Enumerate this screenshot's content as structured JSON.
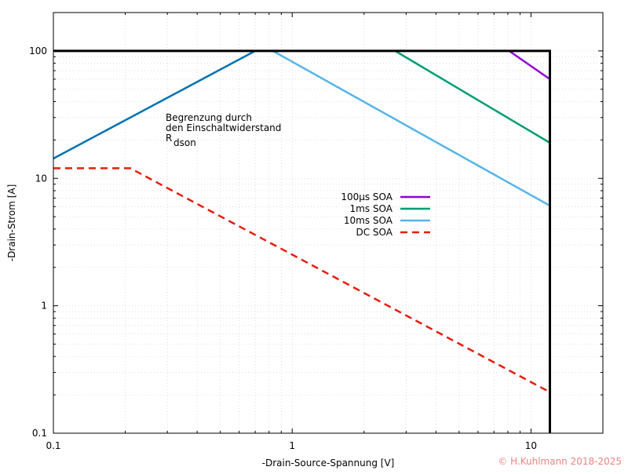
{
  "chart_data": {
    "type": "line",
    "title": "",
    "xlabel": "-Drain-Source-Spannung [V]",
    "ylabel": "-Drain-Strom [A]",
    "xscale": "log",
    "yscale": "log",
    "xlim": [
      0.1,
      20
    ],
    "ylim": [
      0.1,
      200
    ],
    "grid": true,
    "legend_position": "center",
    "x_ticks": [
      {
        "value": 0.1,
        "label": "0.1"
      },
      {
        "value": 1,
        "label": "1"
      },
      {
        "value": 10,
        "label": "10"
      }
    ],
    "y_ticks": [
      {
        "value": 0.1,
        "label": "0.1"
      },
      {
        "value": 1,
        "label": "1"
      },
      {
        "value": 10,
        "label": "10"
      },
      {
        "value": 100,
        "label": "100"
      }
    ],
    "boundary": {
      "color": "#000000",
      "points": [
        [
          0.1,
          100
        ],
        [
          12,
          100
        ],
        [
          12,
          0.1
        ]
      ]
    },
    "rdson_line": {
      "color": "#0072b2",
      "points": [
        [
          0.1,
          14.3
        ],
        [
          0.7,
          100
        ]
      ]
    },
    "series": [
      {
        "name": "100µs SOA",
        "color": "#9400d3",
        "dash": "solid",
        "points": [
          [
            8.1,
            100
          ],
          [
            12,
            60
          ]
        ]
      },
      {
        "name": "1ms SOA",
        "color": "#009e73",
        "dash": "solid",
        "points": [
          [
            2.7,
            100
          ],
          [
            12,
            19
          ]
        ]
      },
      {
        "name": "10ms SOA",
        "color": "#56b4e9",
        "dash": "solid",
        "points": [
          [
            0.83,
            100
          ],
          [
            12,
            6.1
          ]
        ]
      },
      {
        "name": "DC SOA",
        "color": "#e51e10",
        "dash": "dashed",
        "points": [
          [
            0.1,
            12
          ],
          [
            0.21,
            12
          ],
          [
            12,
            0.21
          ]
        ]
      }
    ],
    "annotation": {
      "line1": "Begrenzung durch",
      "line2": "den Einschaltwiderstand",
      "symbol": "R",
      "subscript": "dson"
    },
    "copyright": "© H.Kuhlmann 2018-2025"
  }
}
